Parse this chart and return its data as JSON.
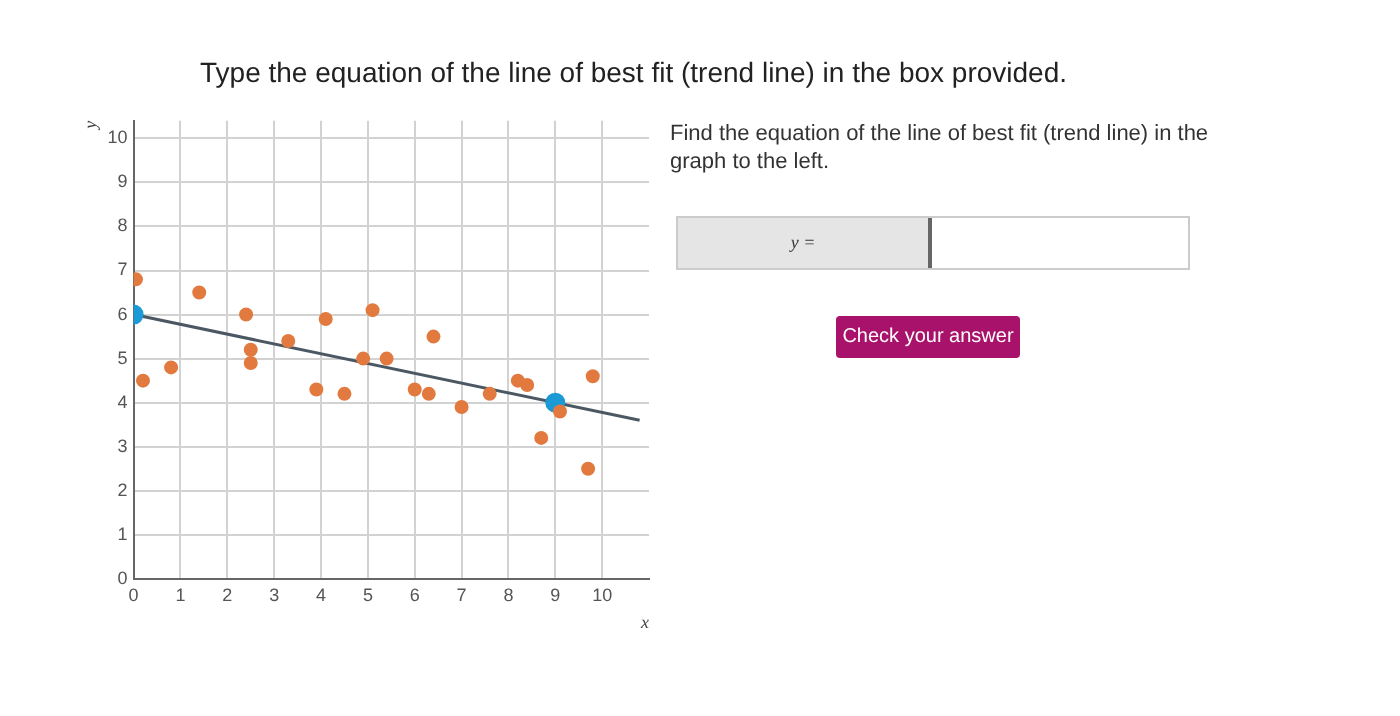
{
  "chart_data": {
    "type": "scatter",
    "title": "Type the equation of the line of best fit (trend line) in the box provided.",
    "xlabel": "x",
    "ylabel": "y",
    "xlim": [
      0,
      11
    ],
    "ylim": [
      0,
      10.4
    ],
    "xticks": [
      0,
      1,
      2,
      3,
      4,
      5,
      6,
      7,
      8,
      9,
      10
    ],
    "yticks": [
      0,
      1,
      2,
      3,
      4,
      5,
      6,
      7,
      8,
      9,
      10
    ],
    "grid": true,
    "legend": false,
    "marker": "circle",
    "series": [
      {
        "color": "#e27a3f",
        "x": [
          0.05,
          0.2,
          0.8,
          1.4,
          2.4,
          2.5,
          2.5,
          3.3,
          3.9,
          4.1,
          4.5,
          4.9,
          5.1,
          5.4,
          6.0,
          6.3,
          6.4,
          7.0,
          7.6,
          8.2,
          8.4,
          8.7,
          9.1,
          9.7,
          9.8
        ],
        "values": [
          6.8,
          4.5,
          4.8,
          6.5,
          6.0,
          5.2,
          4.9,
          5.4,
          4.3,
          5.9,
          4.2,
          5.0,
          6.1,
          5.0,
          4.3,
          4.2,
          5.5,
          3.9,
          4.2,
          4.5,
          4.4,
          3.2,
          3.8,
          2.5,
          4.6
        ]
      },
      {
        "type": "line",
        "color": "#4b5863",
        "marker": "none",
        "line_style": "solid",
        "x": [
          0,
          10.8
        ],
        "values": [
          6,
          3.6
        ]
      },
      {
        "color": "#1c9ad6",
        "x": [
          0,
          9
        ],
        "values": [
          6,
          4
        ]
      }
    ],
    "annotations": [
      "Find the equation of the line of best fit (trend line) in the graph to the left.",
      "y =",
      "Check your answer"
    ]
  }
}
